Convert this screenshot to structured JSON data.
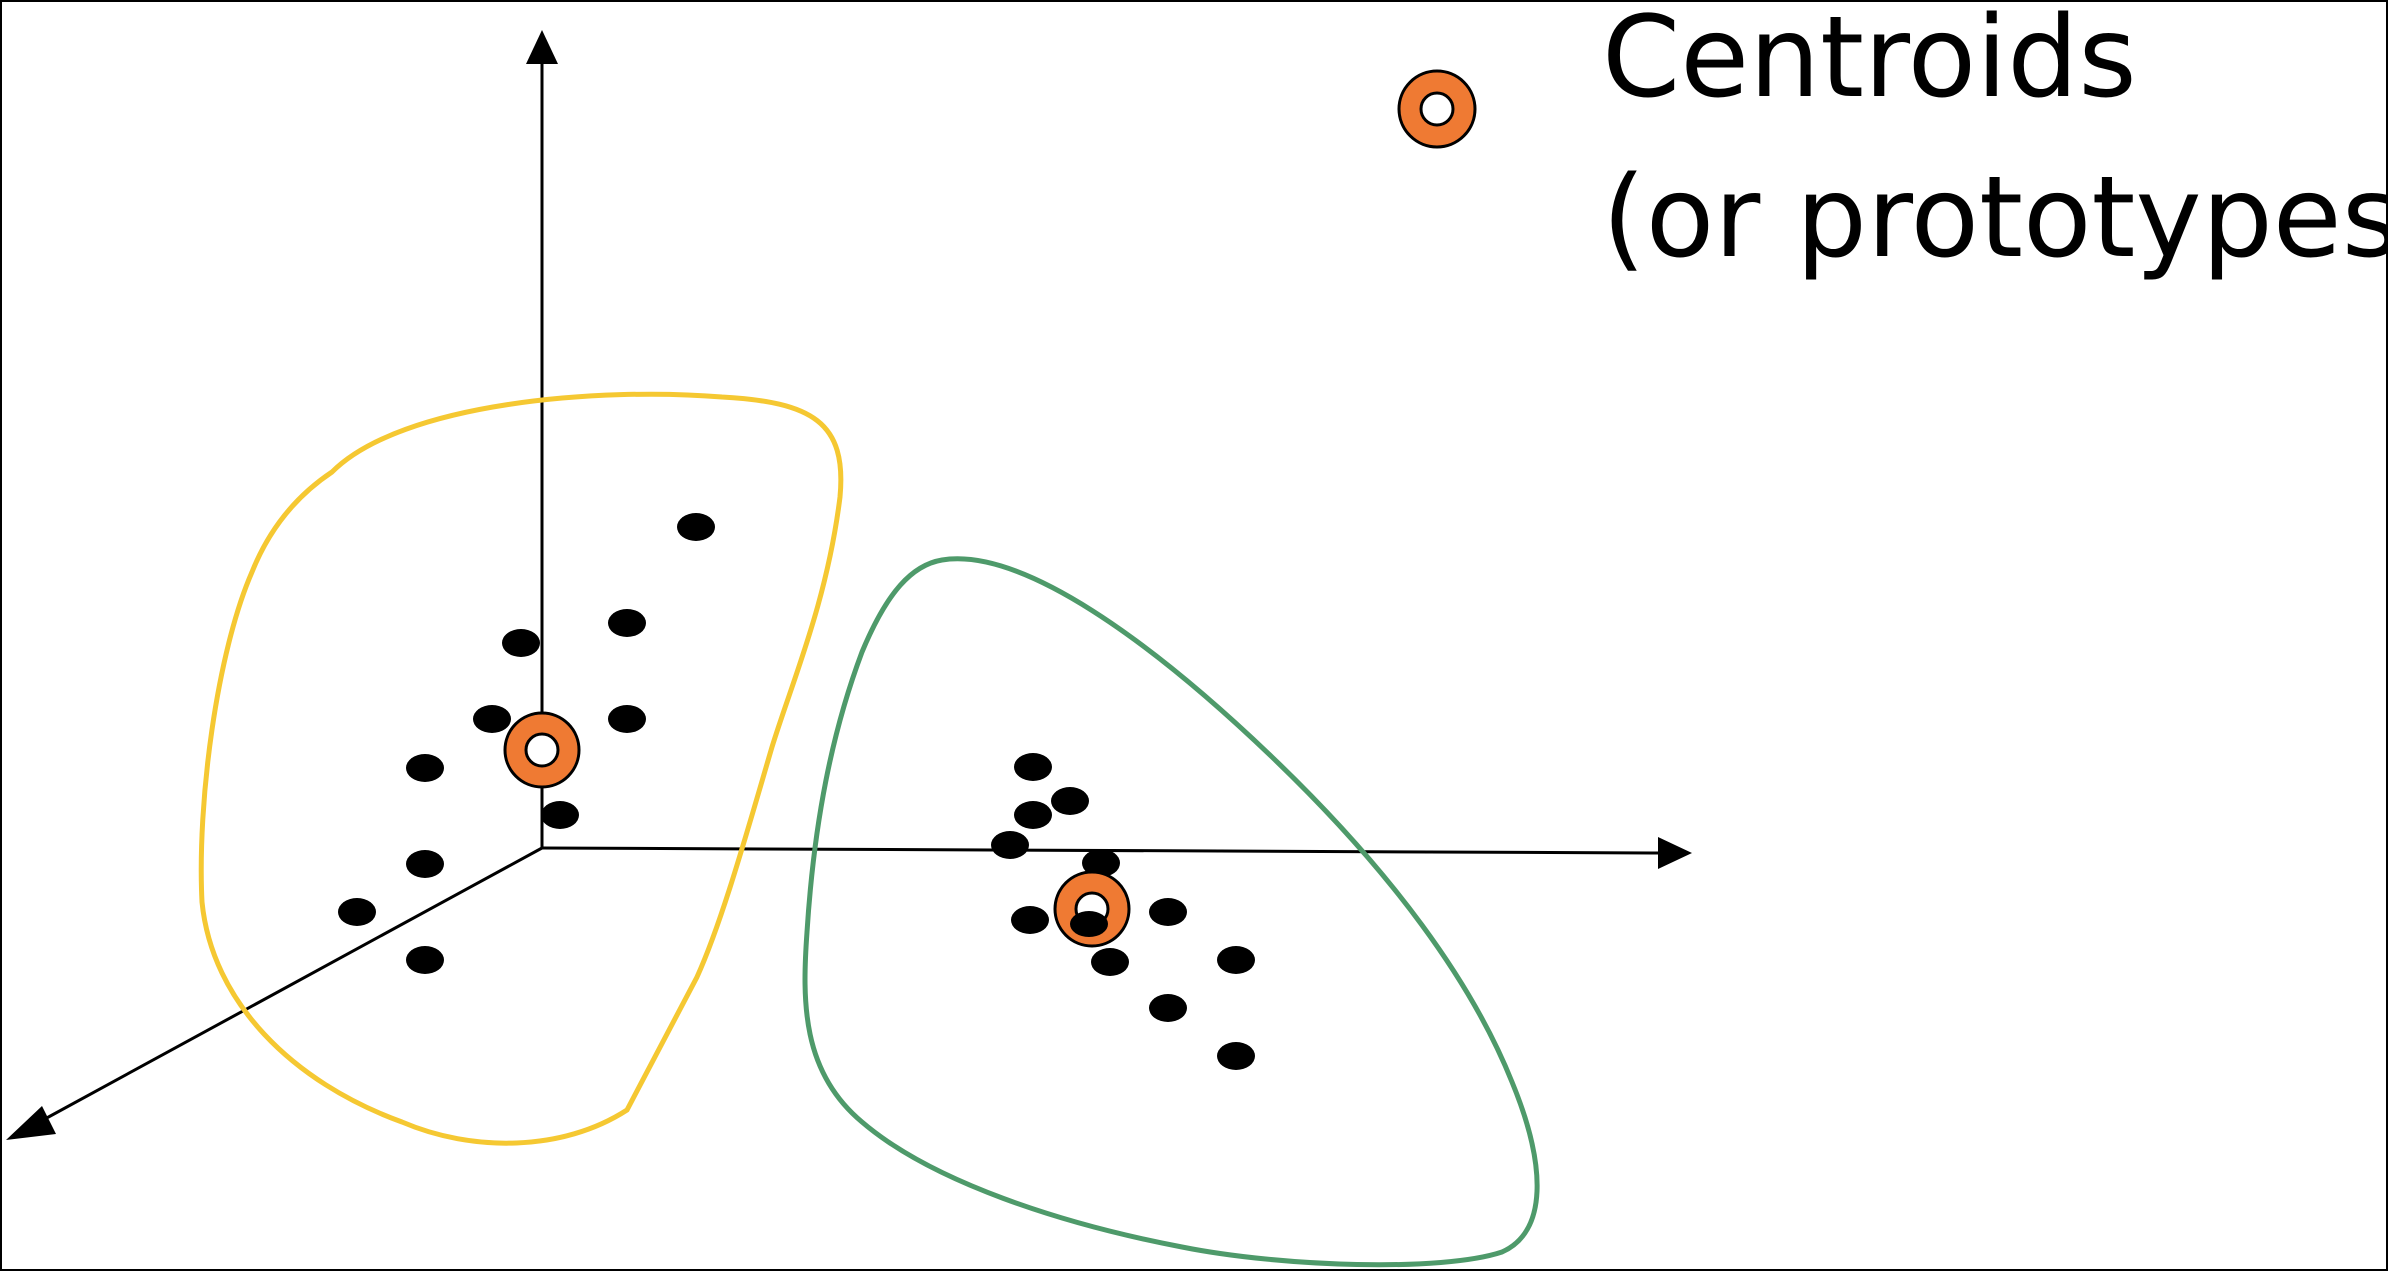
{
  "legend": {
    "line1": "Centroids",
    "line2": "(or prototypes)",
    "icon": "centroid-ring-icon"
  },
  "colors": {
    "axis": "#000000",
    "point": "#000000",
    "centroid_fill": "#EF7A33",
    "centroid_center": "#FFFFFF",
    "cluster_1_outline": "#F5C832",
    "cluster_2_outline": "#4E9A6A"
  }
}
